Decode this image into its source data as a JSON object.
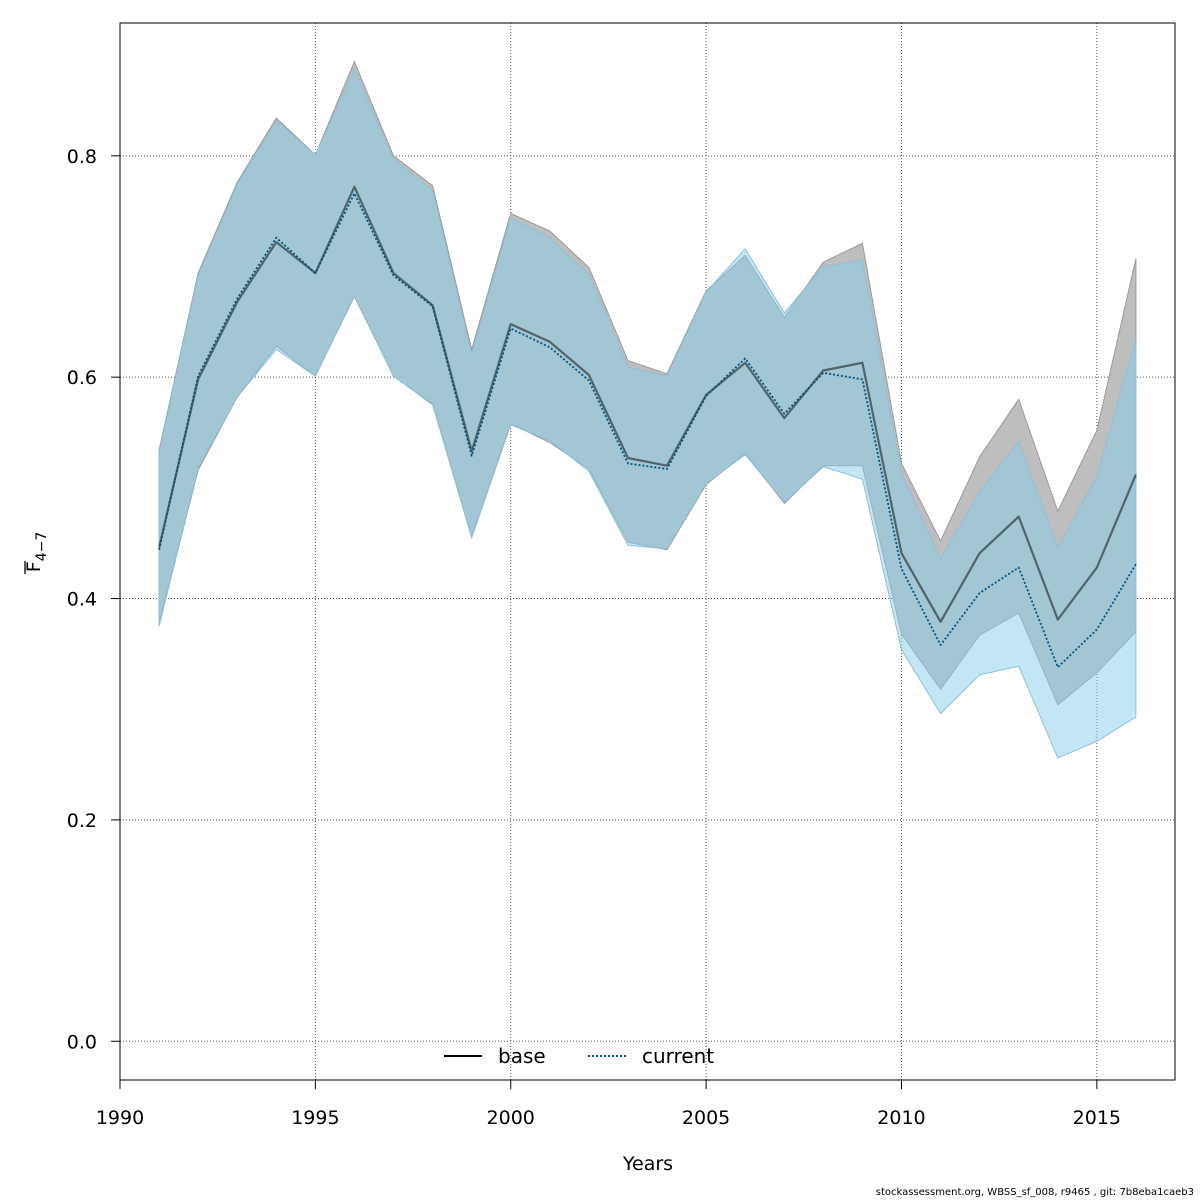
{
  "chart_data": {
    "type": "area",
    "xlabel": "Years",
    "ylabel_main": "F",
    "ylabel_sub": "4−7",
    "xlim": [
      1990,
      2017
    ],
    "ylim": [
      -0.035,
      0.92
    ],
    "xticks": [
      1990,
      1995,
      2000,
      2005,
      2010,
      2015
    ],
    "yticks": [
      0.0,
      0.2,
      0.4,
      0.6,
      0.8
    ],
    "ytick_labels": [
      "0.0",
      "0.2",
      "0.4",
      "0.6",
      "0.8"
    ],
    "grid": true,
    "legend_position": "bottom",
    "x": [
      1991,
      1992,
      1993,
      1994,
      1995,
      1996,
      1997,
      1998,
      1999,
      2000,
      2001,
      2002,
      2003,
      2004,
      2005,
      2006,
      2007,
      2008,
      2009,
      2010,
      2011,
      2012,
      2013,
      2014,
      2015,
      2016
    ],
    "series": [
      {
        "name": "base",
        "line_style": "solid",
        "line_color": "#000000",
        "band_color": "#bebebe",
        "values": [
          0.446,
          0.598,
          0.668,
          0.722,
          0.694,
          0.772,
          0.694,
          0.665,
          0.533,
          0.648,
          0.632,
          0.602,
          0.527,
          0.52,
          0.584,
          0.613,
          0.563,
          0.606,
          0.613,
          0.441,
          0.379,
          0.441,
          0.474,
          0.381,
          0.428,
          0.512
        ],
        "lower": [
          0.377,
          0.516,
          0.582,
          0.628,
          0.601,
          0.673,
          0.601,
          0.576,
          0.456,
          0.558,
          0.541,
          0.517,
          0.451,
          0.444,
          0.503,
          0.531,
          0.486,
          0.52,
          0.52,
          0.368,
          0.318,
          0.367,
          0.387,
          0.304,
          0.333,
          0.37
        ],
        "upper": [
          0.534,
          0.694,
          0.776,
          0.834,
          0.801,
          0.885,
          0.8,
          0.773,
          0.625,
          0.748,
          0.732,
          0.699,
          0.615,
          0.603,
          0.678,
          0.71,
          0.654,
          0.704,
          0.721,
          0.522,
          0.452,
          0.528,
          0.58,
          0.479,
          0.552,
          0.707
        ]
      },
      {
        "name": "current",
        "line_style": "dotted",
        "line_color": "#00527f",
        "band_color": "#87ceeb",
        "values": [
          0.444,
          0.601,
          0.671,
          0.726,
          0.694,
          0.766,
          0.692,
          0.664,
          0.529,
          0.644,
          0.627,
          0.597,
          0.522,
          0.517,
          0.583,
          0.617,
          0.567,
          0.604,
          0.598,
          0.427,
          0.358,
          0.405,
          0.428,
          0.338,
          0.372,
          0.431
        ],
        "lower": [
          0.375,
          0.518,
          0.582,
          0.625,
          0.601,
          0.674,
          0.601,
          0.575,
          0.455,
          0.557,
          0.543,
          0.515,
          0.448,
          0.445,
          0.504,
          0.53,
          0.487,
          0.519,
          0.508,
          0.354,
          0.296,
          0.331,
          0.339,
          0.256,
          0.271,
          0.293
        ],
        "upper": [
          0.532,
          0.692,
          0.774,
          0.832,
          0.801,
          0.878,
          0.797,
          0.769,
          0.621,
          0.744,
          0.726,
          0.693,
          0.609,
          0.601,
          0.677,
          0.716,
          0.658,
          0.7,
          0.706,
          0.513,
          0.436,
          0.496,
          0.542,
          0.446,
          0.51,
          0.634
        ]
      }
    ],
    "legend": [
      {
        "label": "base",
        "line_style": "solid"
      },
      {
        "label": "current",
        "line_style": "dotted"
      }
    ]
  },
  "footer": {
    "note": "stockassessment.org, WBSS_sf_008, r9465 , git: 7b8eba1caeb3"
  }
}
